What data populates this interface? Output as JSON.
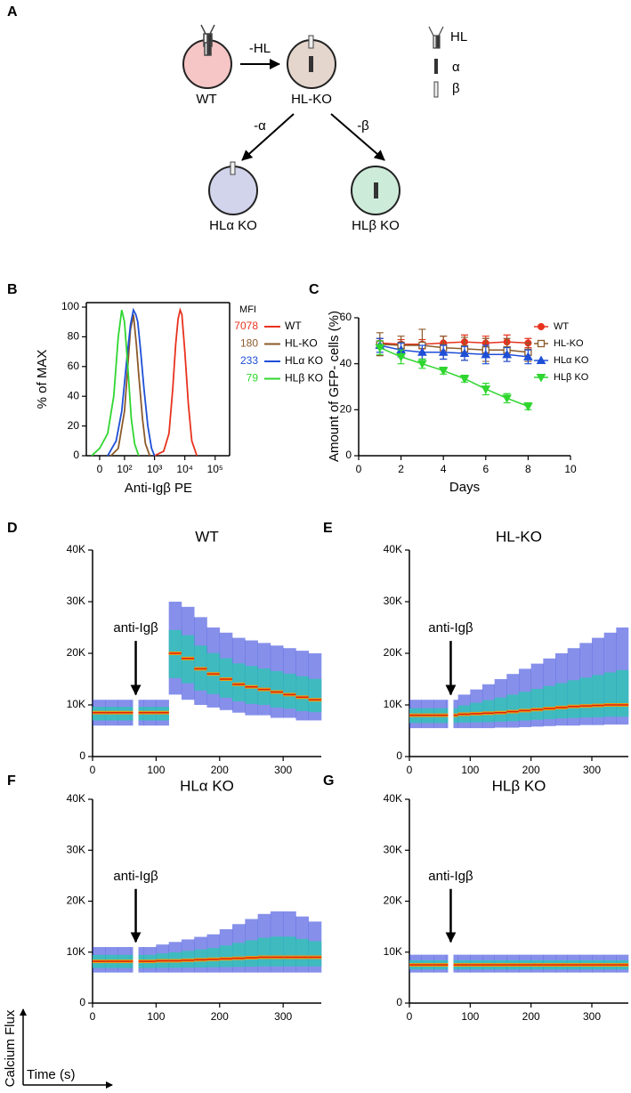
{
  "diagram": {
    "panel": "A",
    "cells": [
      {
        "label": "WT"
      },
      {
        "label": "HL-KO"
      },
      {
        "label": "HLα KO"
      },
      {
        "label": "HLβ KO"
      }
    ],
    "arrows": [
      {
        "label": "-HL"
      },
      {
        "label": "-α"
      },
      {
        "label": "-β"
      }
    ],
    "legend": [
      {
        "label": "HL"
      },
      {
        "label": "α"
      },
      {
        "label": "β"
      }
    ]
  },
  "chart_data": [
    {
      "type": "histogram-line",
      "panel": "B",
      "ylabel": "% of MAX",
      "xlabel": "Anti-Igβ PE",
      "xscale": "biexponential",
      "xlim": [
        -37,
        300000
      ],
      "xticks": [
        {
          "value": 0,
          "label": "0"
        },
        {
          "value": 100,
          "label": "10²"
        },
        {
          "value": 1000,
          "label": "10³"
        },
        {
          "value": 10000,
          "label": "10⁴"
        },
        {
          "value": 100000,
          "label": "10⁵"
        }
      ],
      "ylim": [
        0,
        103
      ],
      "yticks": [
        0,
        20,
        40,
        60,
        80,
        100
      ],
      "legend_title": "MFI",
      "series": [
        {
          "name": "WT",
          "mfi": 7078,
          "color": "#e8321e",
          "x": [
            1000,
            2000,
            3000,
            4000,
            5000,
            6000,
            7000,
            8000,
            10000,
            13000,
            17000,
            25000
          ],
          "values": [
            0,
            3,
            15,
            45,
            75,
            92,
            98,
            95,
            70,
            35,
            10,
            0
          ]
        },
        {
          "name": "HL-KO",
          "mfi": 180,
          "color": "#8b5a2b",
          "x": [
            30,
            60,
            100,
            130,
            160,
            180,
            200,
            250,
            300,
            400,
            500,
            700
          ],
          "values": [
            0,
            5,
            30,
            60,
            85,
            90,
            95,
            75,
            55,
            25,
            8,
            0
          ]
        },
        {
          "name": "HLα KO",
          "mfi": 233,
          "color": "#1f4fd6",
          "x": [
            20,
            50,
            80,
            120,
            160,
            200,
            240,
            280,
            350,
            450,
            600,
            800,
            1000
          ],
          "values": [
            0,
            10,
            30,
            65,
            88,
            98,
            95,
            90,
            70,
            45,
            20,
            5,
            0
          ]
        },
        {
          "name": "HLβ KO",
          "mfi": 79,
          "color": "#2fd62f",
          "x": [
            -20,
            0,
            20,
            40,
            60,
            80,
            100,
            130,
            170,
            220,
            300
          ],
          "values": [
            0,
            5,
            15,
            40,
            80,
            98,
            90,
            60,
            25,
            8,
            0
          ]
        }
      ]
    },
    {
      "type": "line",
      "panel": "C",
      "ylabel": "Amount of GFP- cells (%)",
      "xlabel": "Days",
      "x": [
        1,
        2,
        3,
        4,
        5,
        6,
        7,
        8
      ],
      "xlim": [
        0,
        10
      ],
      "xticks": [
        0,
        2,
        4,
        6,
        8,
        10
      ],
      "ylim": [
        0,
        60
      ],
      "yticks": [
        0,
        20,
        40,
        60
      ],
      "series": [
        {
          "name": "WT",
          "color": "#e8321e",
          "marker": "circle",
          "values": [
            49,
            48.5,
            48.5,
            49,
            49.5,
            49,
            49.5,
            49
          ],
          "errors": [
            2,
            2,
            2,
            3,
            3,
            3,
            3,
            2
          ]
        },
        {
          "name": "HL-KO",
          "color": "#8b5a2b",
          "marker": "square-open",
          "values": [
            48.5,
            48,
            48,
            47,
            46.5,
            46,
            46,
            45
          ],
          "errors": [
            5,
            4,
            7,
            5,
            5,
            5,
            5,
            4
          ]
        },
        {
          "name": "HLα KO",
          "color": "#1f4fd6",
          "marker": "triangle",
          "values": [
            48,
            46,
            45,
            45,
            44.5,
            44,
            44,
            43
          ],
          "errors": [
            3,
            3,
            3,
            3,
            3,
            4,
            3,
            3
          ]
        },
        {
          "name": "HLβ KO",
          "color": "#2fd62f",
          "marker": "triangle-down",
          "values": [
            47,
            43,
            40,
            37,
            33.5,
            29,
            25,
            21.5
          ],
          "errors": [
            3,
            3,
            2,
            1.5,
            1.5,
            2.5,
            2,
            1.5
          ]
        }
      ]
    },
    {
      "type": "density",
      "panel": "D",
      "title": "WT",
      "annotation": {
        "text": "anti-Igβ",
        "x": 68
      },
      "x": [
        0,
        20,
        40,
        60,
        80,
        100,
        120,
        140,
        160,
        180,
        200,
        220,
        240,
        260,
        280,
        300,
        320,
        340
      ],
      "values": [
        8500,
        8500,
        8500,
        8500,
        8500,
        8500,
        20000,
        19000,
        17000,
        16000,
        15000,
        14000,
        13500,
        13000,
        12500,
        12000,
        11500,
        11000
      ],
      "low": [
        6000,
        6000,
        6000,
        6000,
        6000,
        6000,
        12000,
        11000,
        10000,
        9500,
        9000,
        8500,
        8000,
        8000,
        7500,
        7500,
        7000,
        7000
      ],
      "high": [
        11000,
        11000,
        11000,
        11000,
        11000,
        11000,
        30000,
        29000,
        27000,
        25000,
        24000,
        23000,
        22500,
        22000,
        21500,
        21000,
        20500,
        20000
      ],
      "xlim": [
        0,
        360
      ],
      "xticks": [
        0,
        100,
        200,
        300
      ],
      "ylim": [
        0,
        40000
      ],
      "yticks": [
        0,
        {
          "value": 10000,
          "label": "10K"
        },
        {
          "value": 20000,
          "label": "20K"
        },
        {
          "value": 30000,
          "label": "30K"
        },
        {
          "value": 40000,
          "label": "40K"
        }
      ]
    },
    {
      "type": "density",
      "panel": "E",
      "title": "HL-KO",
      "annotation": {
        "text": "anti-Igβ",
        "x": 68
      },
      "x": [
        0,
        20,
        40,
        60,
        80,
        100,
        120,
        140,
        160,
        180,
        200,
        220,
        240,
        260,
        280,
        300,
        320,
        340
      ],
      "values": [
        8000,
        8000,
        8000,
        8000,
        8200,
        8300,
        8400,
        8500,
        8700,
        8900,
        9100,
        9300,
        9500,
        9700,
        9800,
        9900,
        10000,
        10000
      ],
      "low": [
        5500,
        5500,
        5500,
        5500,
        5500,
        5500,
        5500,
        5600,
        5600,
        5700,
        5800,
        5900,
        6000,
        6000,
        6100,
        6100,
        6200,
        6200
      ],
      "high": [
        11000,
        11000,
        11000,
        11000,
        12000,
        13000,
        14000,
        15000,
        16000,
        17000,
        18000,
        19000,
        20000,
        21000,
        22000,
        23000,
        24000,
        25000
      ],
      "xlim": [
        0,
        360
      ],
      "xticks": [
        0,
        100,
        200,
        300
      ],
      "ylim": [
        0,
        40000
      ],
      "yticks": [
        0,
        {
          "value": 10000,
          "label": "10K"
        },
        {
          "value": 20000,
          "label": "20K"
        },
        {
          "value": 30000,
          "label": "30K"
        },
        {
          "value": 40000,
          "label": "40K"
        }
      ]
    },
    {
      "type": "density",
      "panel": "F",
      "title": "HLα KO",
      "annotation": {
        "text": "anti-Igβ",
        "x": 68
      },
      "x": [
        0,
        20,
        40,
        60,
        80,
        100,
        120,
        140,
        160,
        180,
        200,
        220,
        240,
        260,
        280,
        300,
        320,
        340
      ],
      "values": [
        8200,
        8200,
        8200,
        8200,
        8200,
        8300,
        8300,
        8400,
        8500,
        8600,
        8700,
        8800,
        8900,
        9000,
        9000,
        9000,
        9000,
        9000
      ],
      "low": [
        6000,
        6000,
        6000,
        6000,
        6000,
        6000,
        6000,
        6000,
        6000,
        6000,
        6000,
        6000,
        6000,
        6000,
        6000,
        6000,
        6000,
        6000
      ],
      "high": [
        11000,
        11000,
        11000,
        11000,
        11000,
        11500,
        12000,
        12500,
        13000,
        13500,
        14500,
        15500,
        16500,
        17500,
        18000,
        18000,
        17000,
        16000
      ],
      "xlim": [
        0,
        360
      ],
      "xticks": [
        0,
        100,
        200,
        300
      ],
      "ylim": [
        0,
        40000
      ],
      "yticks": [
        0,
        {
          "value": 10000,
          "label": "10K"
        },
        {
          "value": 20000,
          "label": "20K"
        },
        {
          "value": 30000,
          "label": "30K"
        },
        {
          "value": 40000,
          "label": "40K"
        }
      ]
    },
    {
      "type": "density",
      "panel": "G",
      "title": "HLβ KO",
      "annotation": {
        "text": "anti-Igβ",
        "x": 68
      },
      "x": [
        0,
        20,
        40,
        60,
        80,
        100,
        120,
        140,
        160,
        180,
        200,
        220,
        240,
        260,
        280,
        300,
        320,
        340
      ],
      "values": [
        7500,
        7500,
        7500,
        7500,
        7500,
        7500,
        7500,
        7500,
        7500,
        7500,
        7500,
        7500,
        7500,
        7500,
        7500,
        7500,
        7500,
        7500
      ],
      "low": [
        6000,
        6000,
        6000,
        6000,
        6000,
        6000,
        6000,
        6000,
        6000,
        6000,
        6000,
        6000,
        6000,
        6000,
        6000,
        6000,
        6000,
        6000
      ],
      "high": [
        9500,
        9500,
        9500,
        9500,
        9500,
        9500,
        9500,
        9500,
        9500,
        9500,
        9500,
        9500,
        9500,
        9500,
        9500,
        9500,
        9500,
        9500
      ],
      "xlim": [
        0,
        360
      ],
      "xticks": [
        0,
        100,
        200,
        300
      ],
      "ylim": [
        0,
        40000
      ],
      "yticks": [
        0,
        {
          "value": 10000,
          "label": "10K"
        },
        {
          "value": 20000,
          "label": "20K"
        },
        {
          "value": 30000,
          "label": "30K"
        },
        {
          "value": 40000,
          "label": "40K"
        }
      ]
    }
  ],
  "axis_key": {
    "y": "Calcium Flux",
    "x": "Time (s)"
  }
}
